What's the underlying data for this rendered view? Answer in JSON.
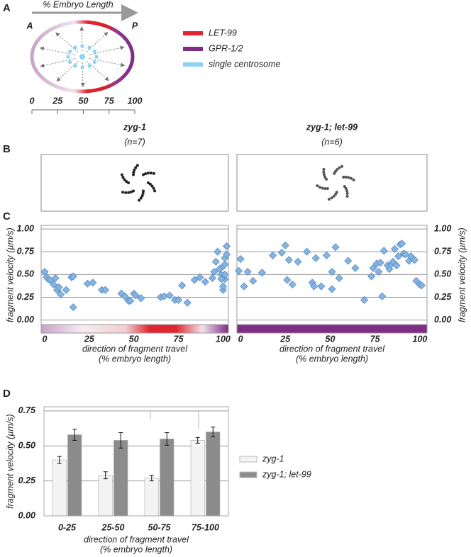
{
  "panel_labels": [
    "A",
    "B",
    "C",
    "D"
  ],
  "diagram": {
    "axis_title": "% Embryo Length",
    "anterior": "A",
    "posterior": "P",
    "legend": [
      {
        "label": "LET-99",
        "color": "#e0252f"
      },
      {
        "label": "GPR-1/2",
        "color": "#7e2d86"
      },
      {
        "label": "single centrosome",
        "color": "#8fd3f2"
      }
    ],
    "scale_ticks": [
      0,
      25,
      50,
      75,
      100
    ]
  },
  "chart_data": [
    {
      "type": "scatter",
      "title": "zyg-1",
      "subtitle": "(n=7)",
      "y_label": "fragment velocity (µm/s)",
      "x_label": [
        "direction of fragment travel",
        "(% embryo length)"
      ],
      "xlim": [
        -2,
        103
      ],
      "xticks": [
        0,
        25,
        50,
        75,
        100
      ],
      "ylim": [
        -0.05,
        1.04
      ],
      "yticks": [
        {
          "value": 0,
          "label": "0.00"
        },
        {
          "value": 0.25,
          "label": "0.25"
        },
        {
          "value": 0.5,
          "label": "0.50"
        },
        {
          "value": 0.75,
          "label": "0.75"
        },
        {
          "value": 1,
          "label": "1.00"
        }
      ],
      "grid": true,
      "yaxis_side": "left",
      "color": "#85b4e2",
      "x": [
        0,
        1,
        2,
        3,
        6,
        5,
        7,
        8,
        9,
        12,
        15,
        16,
        16,
        24,
        27,
        32,
        34,
        43,
        45,
        47,
        48,
        50,
        51,
        54,
        65,
        67,
        70,
        73,
        75,
        77,
        80,
        84,
        87,
        90,
        94,
        95,
        96,
        97,
        98,
        99,
        100,
        100,
        100,
        101,
        101,
        102,
        102,
        101,
        99,
        101
      ],
      "values": [
        0.53,
        0.47,
        0.45,
        0.44,
        0.46,
        0.39,
        0.33,
        0.36,
        0.28,
        0.33,
        0.47,
        0.48,
        0.14,
        0.4,
        0.41,
        0.33,
        0.33,
        0.29,
        0.26,
        0.21,
        0.21,
        0.29,
        0.27,
        0.24,
        0.25,
        0.26,
        0.27,
        0.22,
        0.22,
        0.38,
        0.19,
        0.44,
        0.47,
        0.42,
        0.46,
        0.53,
        0.64,
        0.75,
        0.56,
        0.5,
        0.33,
        0.37,
        0.59,
        0.61,
        0.68,
        0.72,
        0.81,
        0.45,
        0.45,
        0.5
      ]
    },
    {
      "type": "scatter",
      "title": "zyg-1; let-99",
      "subtitle": "(n=6)",
      "y_label": "fragment velocity (µm/s)",
      "x_label": [
        "direction of fragment travel",
        "(% embryo length)"
      ],
      "xlim": [
        -2,
        104
      ],
      "xticks": [
        0,
        25,
        50,
        75,
        100
      ],
      "ylim": [
        -0.05,
        1.04
      ],
      "yticks": [
        {
          "value": 0,
          "label": "0.00"
        },
        {
          "value": 0.25,
          "label": "0.25"
        },
        {
          "value": 0.5,
          "label": "0.50"
        },
        {
          "value": 0.75,
          "label": "0.75"
        },
        {
          "value": 1,
          "label": "1.00"
        }
      ],
      "grid": true,
      "yaxis_side": "right",
      "color": "#85b4e2",
      "x": [
        -1,
        0,
        2,
        4,
        7,
        12,
        18,
        23,
        25,
        26,
        27,
        29,
        32,
        37,
        40,
        41,
        42,
        45,
        48,
        51,
        51,
        53,
        55,
        60,
        64,
        69,
        73,
        74,
        76,
        77,
        78,
        79,
        80,
        82,
        83,
        84,
        85,
        86,
        87,
        88,
        89,
        90,
        91,
        92,
        94,
        95,
        97,
        98,
        100,
        101
      ],
      "values": [
        0.54,
        0.67,
        0.37,
        0.53,
        0.43,
        0.52,
        0.71,
        0.74,
        0.82,
        0.44,
        0.66,
        0.39,
        0.64,
        0.75,
        0.41,
        0.37,
        0.68,
        0.37,
        0.71,
        0.34,
        0.53,
        0.8,
        0.46,
        0.65,
        0.57,
        0.22,
        0.48,
        0.57,
        0.62,
        0.53,
        0.63,
        0.26,
        0.76,
        0.6,
        0.56,
        0.61,
        0.64,
        0.78,
        0.6,
        0.7,
        0.83,
        0.84,
        0.73,
        0.72,
        0.65,
        0.7,
        0.66,
        0.43,
        0.39,
        0.38
      ]
    },
    {
      "type": "bar",
      "y_label": "fragment velocity (µm/s)",
      "x_label": [
        "direction of fragment travel",
        "(% embryo length)"
      ],
      "categories": [
        "0-25",
        "25-50",
        "50-75",
        "75-100"
      ],
      "ylim": [
        0,
        0.78
      ],
      "yticks": [
        {
          "value": 0,
          "label": "0.00"
        },
        {
          "value": 0.25,
          "label": "0.25"
        },
        {
          "value": 0.5,
          "label": "0.50"
        },
        {
          "value": 0.75,
          "label": "0.75"
        }
      ],
      "grid": true,
      "series": [
        {
          "name": "zyg-1",
          "color": "#f3f3f3",
          "values": [
            0.4,
            0.29,
            0.27,
            0.54
          ],
          "errors": [
            0.025,
            0.025,
            0.02,
            0.02
          ]
        },
        {
          "name": "zyg-1; let-99",
          "color": "#8c8c8c",
          "values": [
            0.58,
            0.54,
            0.55,
            0.6
          ],
          "errors": [
            0.04,
            0.055,
            0.045,
            0.035
          ]
        }
      ]
    }
  ]
}
